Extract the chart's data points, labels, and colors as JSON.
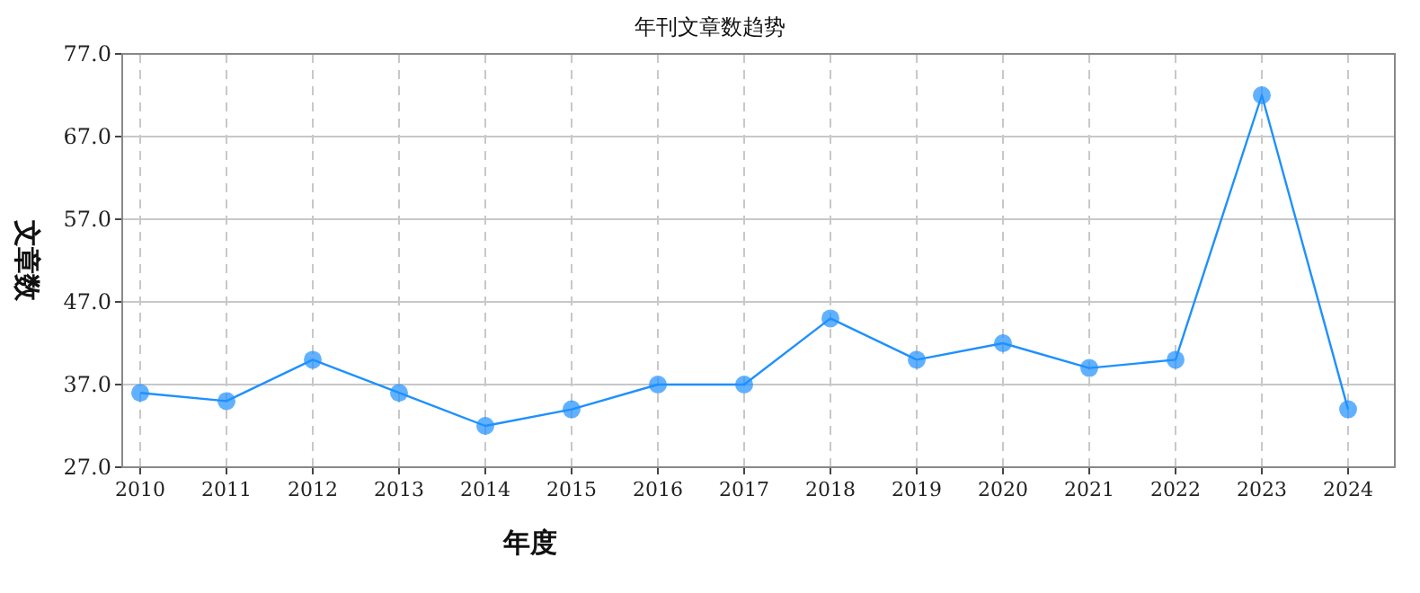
{
  "chart_data": {
    "type": "line",
    "title": "年刊文章数趋势",
    "xlabel": "年度",
    "ylabel": "文章数",
    "categories": [
      "2010",
      "2011",
      "2012",
      "2013",
      "2014",
      "2015",
      "2016",
      "2017",
      "2018",
      "2019",
      "2020",
      "2021",
      "2022",
      "2023",
      "2024"
    ],
    "series": [
      {
        "color": "#1e90ff",
        "values": [
          36,
          35,
          40,
          36,
          32,
          34,
          37,
          37,
          45,
          40,
          42,
          39,
          40,
          72,
          34
        ]
      }
    ],
    "ylim": [
      27,
      77
    ],
    "yticks": [
      {
        "value": 27,
        "label": "27.0"
      },
      {
        "value": 37,
        "label": "37.0"
      },
      {
        "value": 47,
        "label": "47.0"
      },
      {
        "value": 57,
        "label": "57.0"
      },
      {
        "value": 67,
        "label": "67.0"
      },
      {
        "value": 77,
        "label": "77.0"
      }
    ],
    "grid": true,
    "marker": "circle"
  }
}
